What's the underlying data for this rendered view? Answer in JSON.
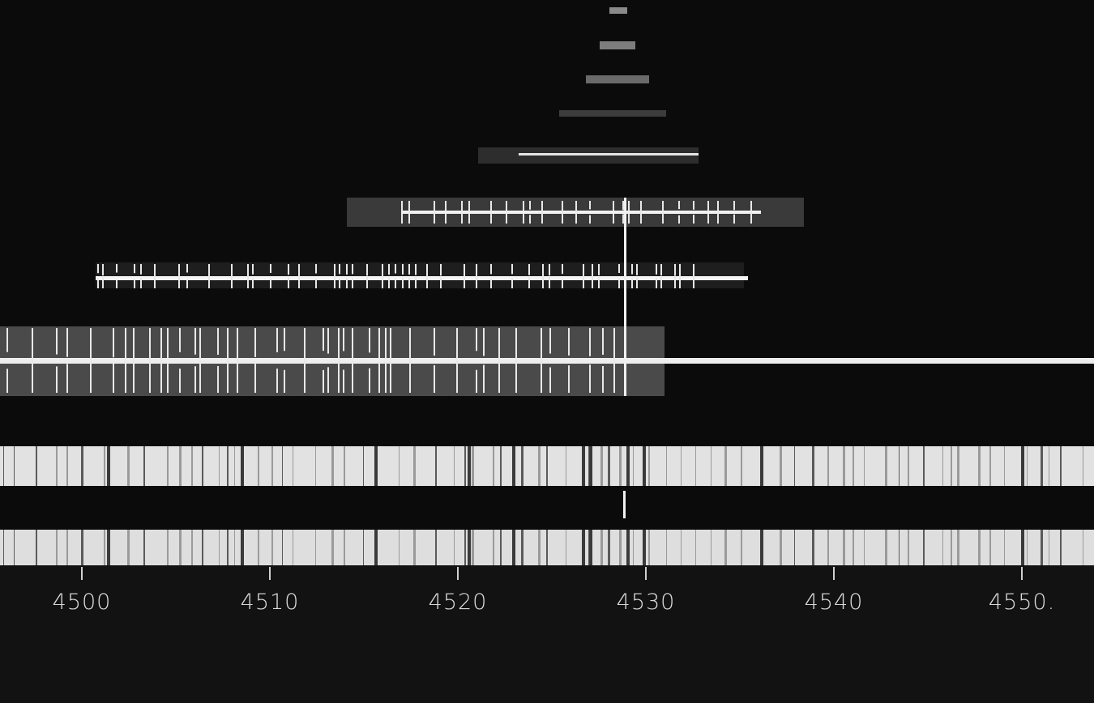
{
  "scale": {
    "ticks": [
      {
        "wavelength": 4500,
        "label": "4500"
      },
      {
        "wavelength": 4510,
        "label": "4510"
      },
      {
        "wavelength": 4520,
        "label": "4520"
      },
      {
        "wavelength": 4530,
        "label": "4530"
      },
      {
        "wavelength": 4540,
        "label": "4540"
      },
      {
        "wavelength": 4550,
        "label": "4550."
      }
    ]
  },
  "colors": {
    "background": "#0a0a0a",
    "spectrum_bright": "#e4e4e4",
    "line_white": "#f4f4f4",
    "absorption_dark": "#4a4a4a",
    "label": "#dcdcdc"
  },
  "marked_line": 4529
}
